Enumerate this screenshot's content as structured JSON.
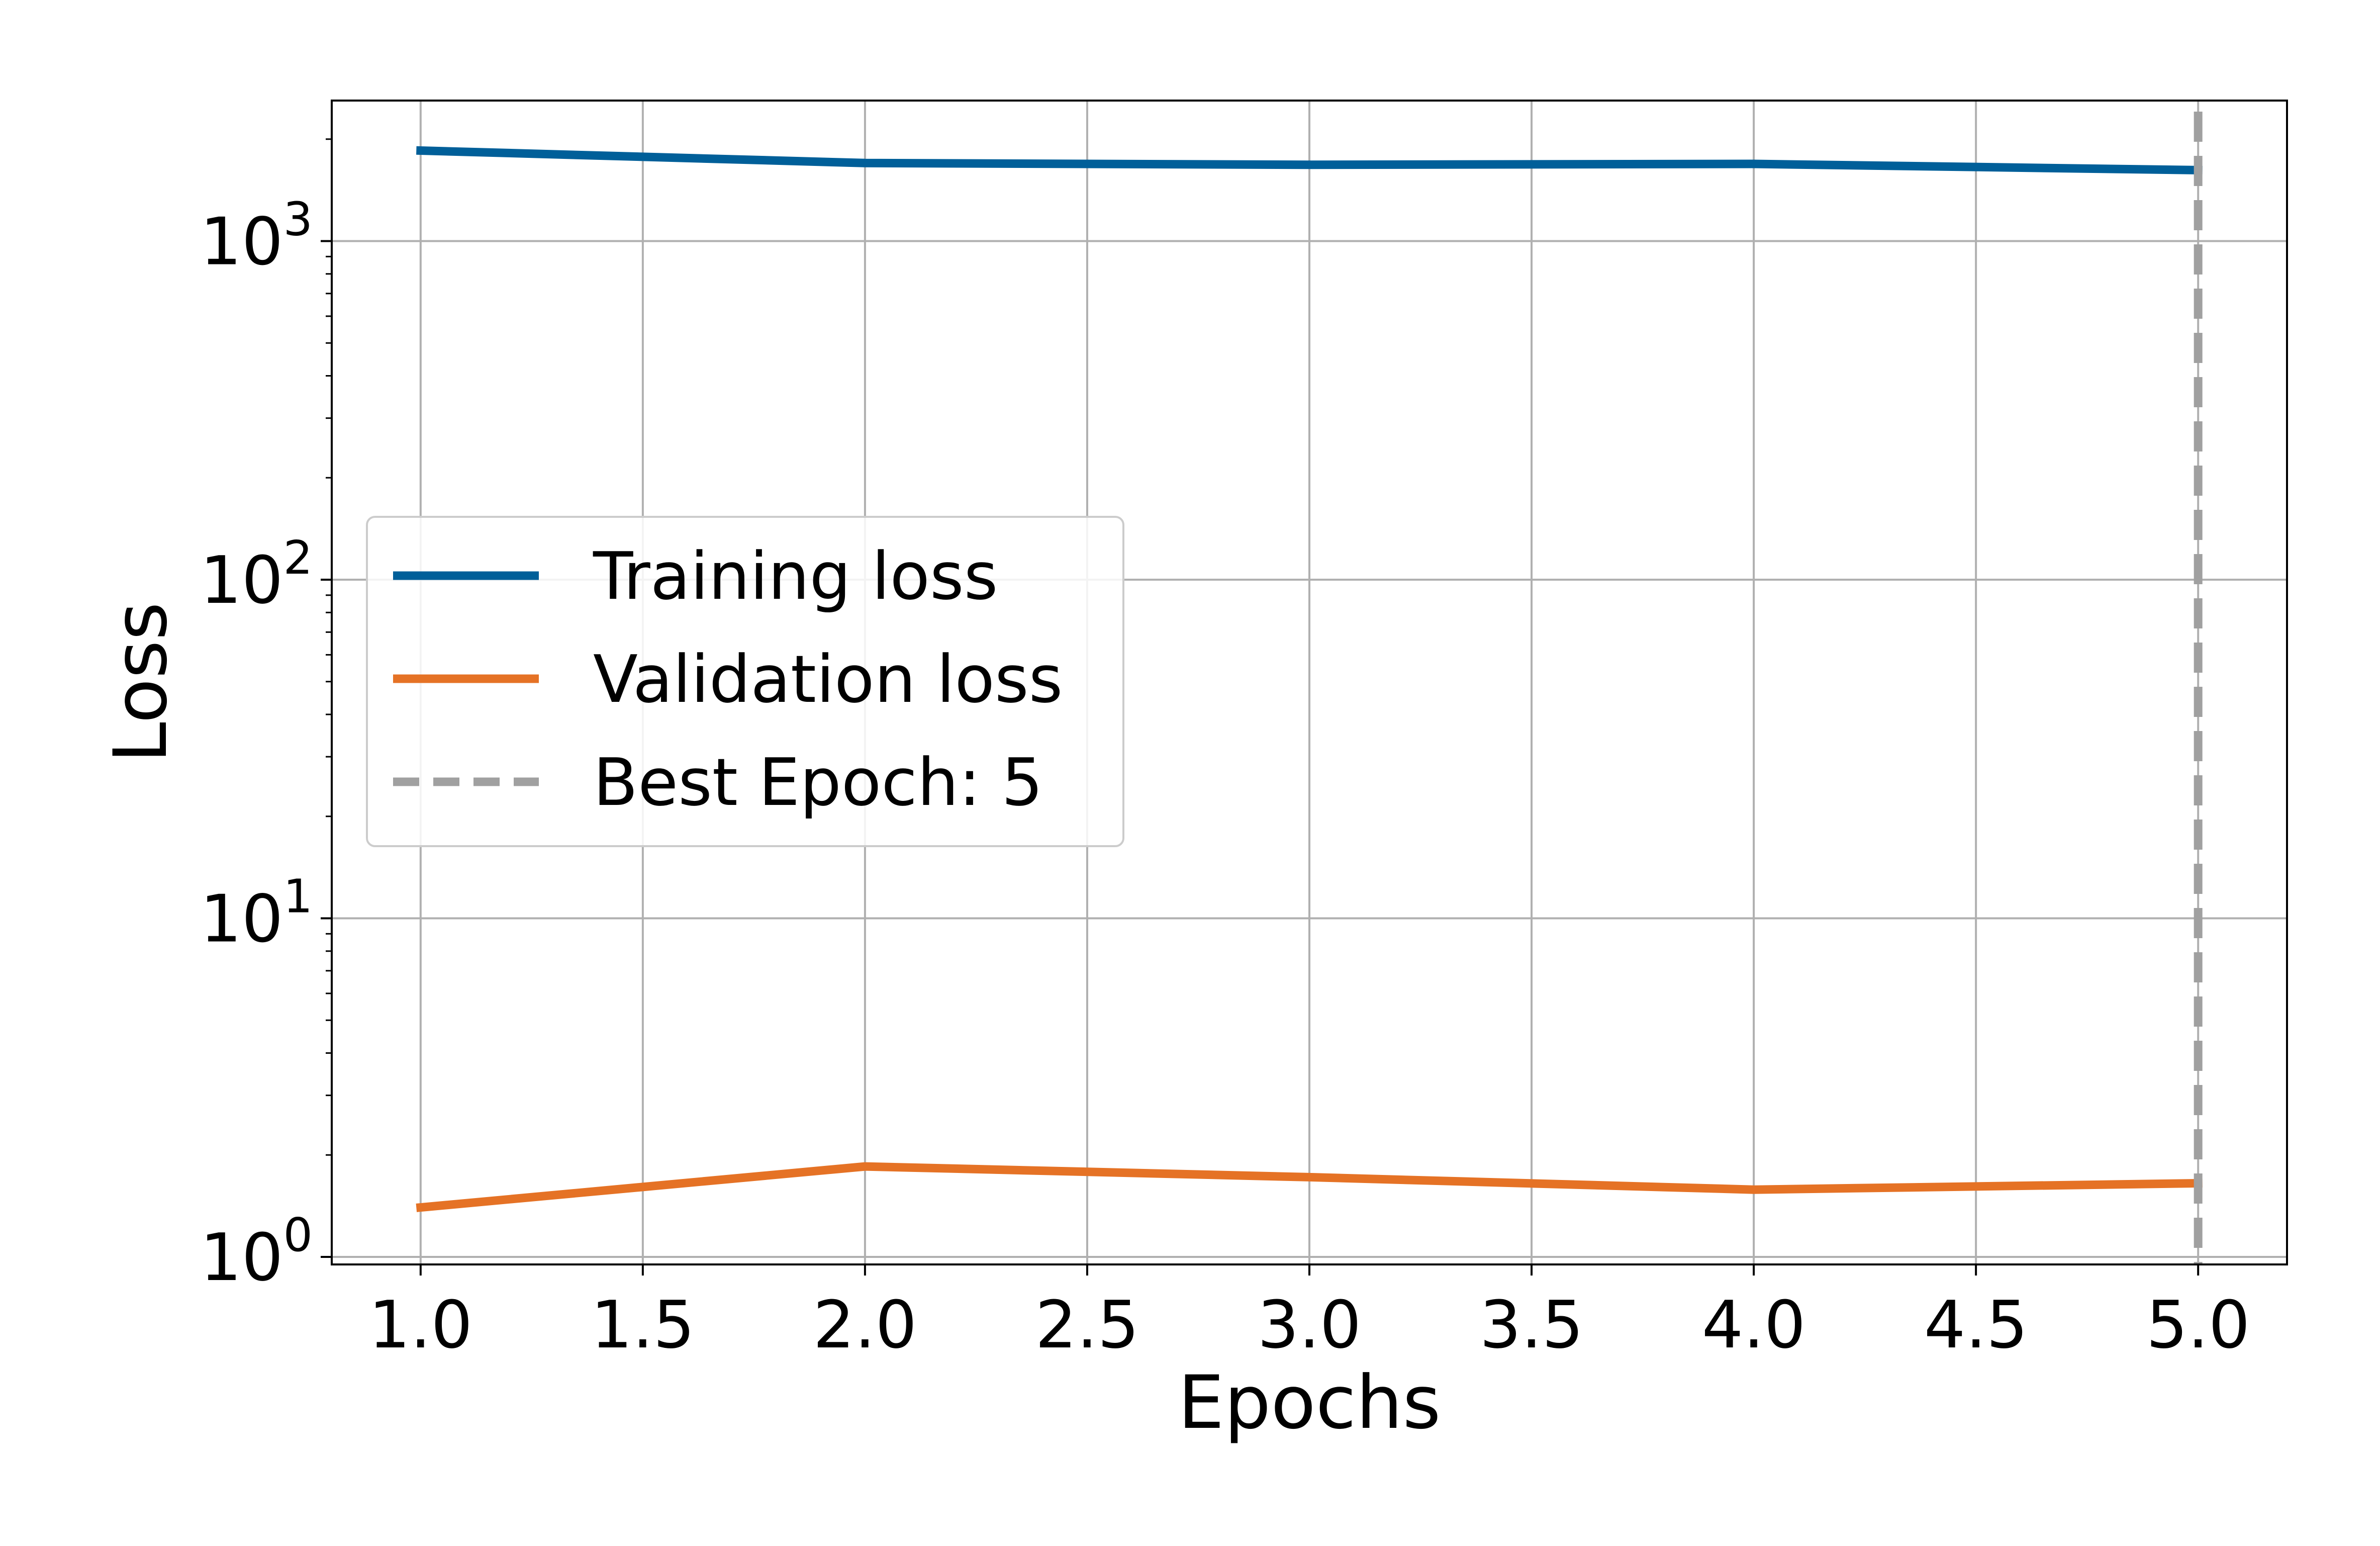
{
  "chart_data": {
    "type": "line",
    "title": "",
    "xlabel": "Epochs",
    "ylabel": "Loss",
    "x": [
      1,
      2,
      3,
      4,
      5
    ],
    "xlim": [
      0.8,
      5.2
    ],
    "xticks": [
      "1.0",
      "1.5",
      "2.0",
      "2.5",
      "3.0",
      "3.5",
      "4.0",
      "4.5",
      "5.0"
    ],
    "yscale": "log",
    "ylim": [
      0.95,
      2600
    ],
    "yticks": [
      {
        "value": 1,
        "base": "10",
        "exp": "0"
      },
      {
        "value": 10,
        "base": "10",
        "exp": "1"
      },
      {
        "value": 100,
        "base": "10",
        "exp": "2"
      },
      {
        "value": 1000,
        "base": "10",
        "exp": "3"
      }
    ],
    "grid": true,
    "legend_position": "center-left",
    "series": [
      {
        "name": "Training loss",
        "color": "#005f99",
        "values": [
          1850,
          1700,
          1680,
          1690,
          1620
        ]
      },
      {
        "name": "Validation loss",
        "color": "#e57225",
        "values": [
          1.4,
          1.85,
          1.72,
          1.58,
          1.65
        ]
      }
    ],
    "best_epoch": {
      "label": "Best Epoch: 5",
      "x": 5,
      "color": "#a0a0a0"
    }
  }
}
